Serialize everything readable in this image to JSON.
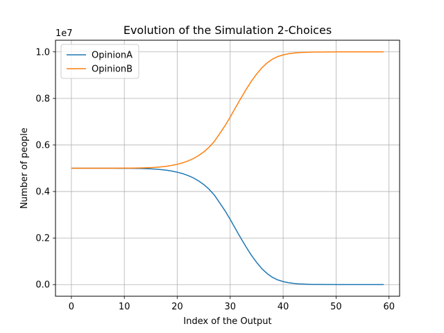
{
  "chart_data": {
    "type": "line",
    "title": "Evolution of the Simulation 2-Choices",
    "xlabel": "Index of the Output",
    "ylabel": "Number of people",
    "y_offset_label": "1e7",
    "xlim": [
      -3,
      62
    ],
    "ylim": [
      -0.05,
      1.05
    ],
    "x_ticks": [
      0,
      10,
      20,
      30,
      40,
      50,
      60
    ],
    "x_tick_labels": [
      "0",
      "10",
      "20",
      "30",
      "40",
      "50",
      "60"
    ],
    "y_ticks": [
      0.0,
      0.2,
      0.4,
      0.6,
      0.8,
      1.0
    ],
    "y_tick_labels": [
      "0.0",
      "0.2",
      "0.4",
      "0.6",
      "0.8",
      "1.0"
    ],
    "grid": true,
    "legend_position": "top-left",
    "x": [
      0,
      1,
      2,
      3,
      4,
      5,
      6,
      7,
      8,
      9,
      10,
      11,
      12,
      13,
      14,
      15,
      16,
      17,
      18,
      19,
      20,
      21,
      22,
      23,
      24,
      25,
      26,
      27,
      28,
      29,
      30,
      31,
      32,
      33,
      34,
      35,
      36,
      37,
      38,
      39,
      40,
      41,
      42,
      43,
      44,
      45,
      46,
      47,
      48,
      49,
      50,
      51,
      52,
      53,
      54,
      55,
      56,
      57,
      58,
      59
    ],
    "series": [
      {
        "name": "OpinionA",
        "color": "#1f77b4",
        "values": [
          0.5,
          0.5,
          0.5,
          0.5,
          0.5,
          0.5,
          0.5,
          0.5,
          0.5,
          0.4998,
          0.4997,
          0.4995,
          0.4992,
          0.4988,
          0.4982,
          0.4973,
          0.496,
          0.4941,
          0.4914,
          0.4877,
          0.483,
          0.477,
          0.469,
          0.459,
          0.446,
          0.43,
          0.41,
          0.385,
          0.352,
          0.318,
          0.28,
          0.24,
          0.2,
          0.162,
          0.126,
          0.095,
          0.068,
          0.047,
          0.031,
          0.02,
          0.013,
          0.008,
          0.005,
          0.003,
          0.002,
          0.0012,
          0.0008,
          0.0005,
          0.0003,
          0.0002,
          0.0001,
          0.0001,
          0,
          0,
          0,
          0,
          0,
          0,
          0,
          0
        ]
      },
      {
        "name": "OpinionB",
        "color": "#ff7f0e",
        "values": [
          0.5,
          0.5,
          0.5,
          0.5,
          0.5,
          0.5,
          0.5,
          0.5,
          0.5,
          0.5002,
          0.5003,
          0.5005,
          0.5008,
          0.5012,
          0.5018,
          0.5027,
          0.504,
          0.5059,
          0.5086,
          0.5123,
          0.517,
          0.523,
          0.531,
          0.541,
          0.554,
          0.57,
          0.59,
          0.615,
          0.648,
          0.682,
          0.72,
          0.76,
          0.8,
          0.838,
          0.874,
          0.905,
          0.932,
          0.953,
          0.969,
          0.98,
          0.987,
          0.992,
          0.995,
          0.997,
          0.998,
          0.9988,
          0.9992,
          0.9995,
          0.9997,
          0.9998,
          0.9999,
          0.9999,
          1,
          1,
          1,
          1,
          1,
          1,
          1,
          1
        ]
      }
    ]
  }
}
